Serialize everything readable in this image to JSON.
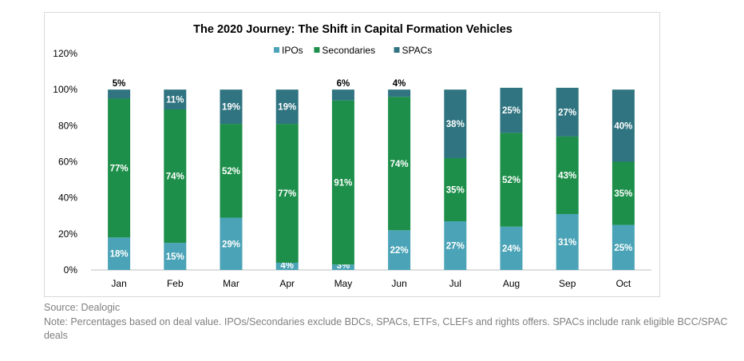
{
  "chart_data": {
    "type": "bar",
    "stacked": true,
    "title": "The 2020 Journey: The Shift in Capital Formation Vehicles",
    "categories": [
      "Jan",
      "Feb",
      "Mar",
      "Apr",
      "May",
      "Jun",
      "Jul",
      "Aug",
      "Sep",
      "Oct"
    ],
    "series": [
      {
        "name": "IPOs",
        "color": "#4aa3b6",
        "values": [
          18,
          15,
          29,
          4,
          3,
          22,
          27,
          24,
          31,
          25
        ],
        "labels": [
          "18%",
          "15%",
          "29%",
          "4%",
          "3%",
          "22%",
          "27%",
          "24%",
          "31%",
          "25%"
        ]
      },
      {
        "name": "Secondaries",
        "color": "#1d8f4a",
        "values": [
          77,
          74,
          52,
          77,
          91,
          74,
          35,
          52,
          43,
          35
        ],
        "labels": [
          "77%",
          "74%",
          "52%",
          "77%",
          "91%",
          "74%",
          "35%",
          "52%",
          "43%",
          "35%"
        ]
      },
      {
        "name": "SPACs",
        "color": "#2f7480",
        "values": [
          5,
          11,
          19,
          19,
          6,
          4,
          38,
          25,
          27,
          40
        ],
        "labels": [
          "5%",
          "11%",
          "19%",
          "19%",
          "6%",
          "4%",
          "38%",
          "25%",
          "27%",
          "40%"
        ]
      }
    ],
    "ylim": [
      0,
      120
    ],
    "yticks": [
      "0%",
      "20%",
      "40%",
      "60%",
      "80%",
      "100%",
      "120%"
    ],
    "legend_position": "top"
  },
  "footnotes": {
    "source": "Source: Dealogic",
    "note": "Note: Percentages based on deal value. IPOs/Secondaries exclude BDCs, SPACs, ETFs, CLEFs and rights offers. SPACs include rank eligible BCC/SPAC deals"
  }
}
